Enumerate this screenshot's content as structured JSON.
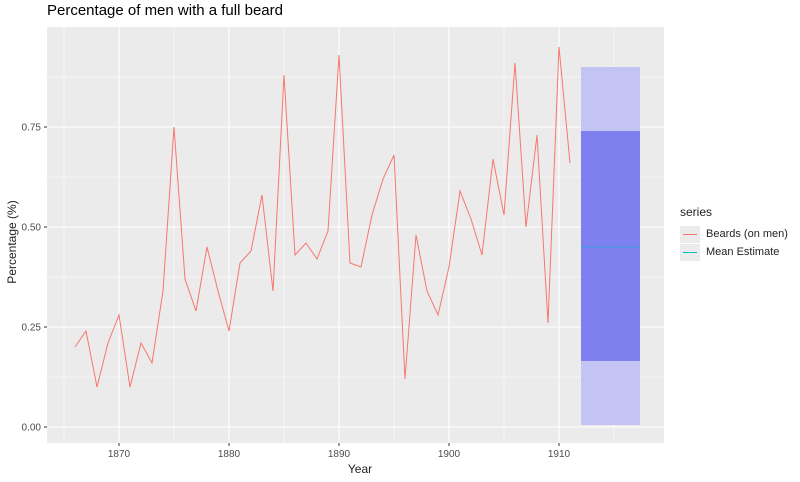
{
  "chart_data": {
    "type": "line",
    "title": "Percentage of men with a full beard",
    "xlabel": "Year",
    "ylabel": "Percentage (%)",
    "xlim": [
      1863.5,
      1918.5
    ],
    "ylim": [
      -0.04,
      1.0
    ],
    "x_ticks": [
      1870,
      1880,
      1890,
      1900,
      1910
    ],
    "x_tick_labels": [
      "1870",
      "1880",
      "1890",
      "1900",
      "1910"
    ],
    "y_ticks": [
      0.0,
      0.25,
      0.5,
      0.75
    ],
    "y_tick_labels": [
      "0.00",
      "0.25",
      "0.50",
      "0.75"
    ],
    "grid": true,
    "legend_position": "right",
    "legend_title": "series",
    "series": [
      {
        "name": "Beards (on men)",
        "color": "#f8766d",
        "x": [
          1866,
          1867,
          1868,
          1869,
          1870,
          1871,
          1872,
          1873,
          1874,
          1875,
          1876,
          1877,
          1878,
          1879,
          1880,
          1881,
          1882,
          1883,
          1884,
          1885,
          1886,
          1887,
          1888,
          1889,
          1890,
          1891,
          1892,
          1893,
          1894,
          1895,
          1896,
          1897,
          1898,
          1899,
          1900,
          1901,
          1902,
          1903,
          1904,
          1905,
          1906,
          1907,
          1908,
          1909,
          1910,
          1911
        ],
        "values": [
          0.2,
          0.24,
          0.1,
          0.21,
          0.28,
          0.1,
          0.21,
          0.16,
          0.34,
          0.75,
          0.37,
          0.29,
          0.45,
          0.34,
          0.24,
          0.41,
          0.44,
          0.58,
          0.34,
          0.88,
          0.43,
          0.46,
          0.42,
          0.49,
          0.93,
          0.41,
          0.4,
          0.53,
          0.62,
          0.68,
          0.12,
          0.48,
          0.34,
          0.28,
          0.4,
          0.59,
          0.52,
          0.43,
          0.67,
          0.53,
          0.91,
          0.5,
          0.73,
          0.26,
          0.95,
          0.66
        ]
      },
      {
        "name": "Mean Estimate",
        "color": "#00bfc4",
        "type": "forecast",
        "x_range": [
          1912,
          1917
        ],
        "mean": 0.45,
        "interval_80": [
          0.165,
          0.74
        ],
        "interval_95": [
          0.0,
          0.9
        ]
      }
    ]
  },
  "colors": {
    "panel_bg": "#ebebeb",
    "grid": "#ffffff",
    "beards_line": "#f8766d",
    "mean_line": "#00bfc4",
    "band_80": "#7f80f0",
    "band_95": "#c4c4f4"
  }
}
